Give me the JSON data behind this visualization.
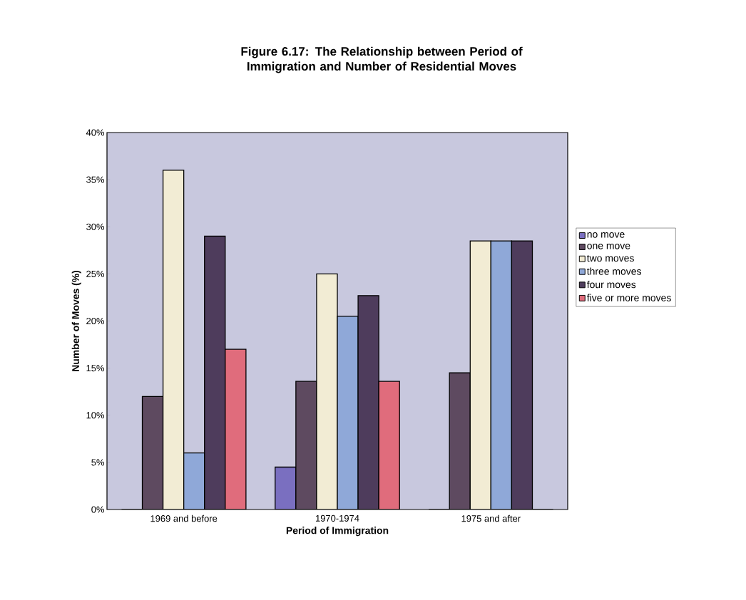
{
  "chart_data": {
    "type": "bar",
    "title": "Figure 6.17: The Relationship between Period of Immigration and Number of Residential Moves",
    "xlabel": "Period of Immigration",
    "ylabel": "Number of Moves (%)",
    "categories": [
      "1969 and before",
      "1970-1974",
      "1975 and after"
    ],
    "series": [
      {
        "name": "no move",
        "color": "#7a6fc0",
        "values": [
          0,
          4.5,
          0
        ]
      },
      {
        "name": "one move",
        "color": "#5e4a60",
        "values": [
          12,
          13.6,
          14.5
        ]
      },
      {
        "name": "two moves",
        "color": "#f2ecd4",
        "values": [
          36,
          25,
          28.5
        ]
      },
      {
        "name": "three moves",
        "color": "#8fa8d8",
        "values": [
          6,
          20.5,
          28.5
        ]
      },
      {
        "name": "four moves",
        "color": "#4e3c5c",
        "values": [
          29,
          22.7,
          28.5
        ]
      },
      {
        "name": "five or more moves",
        "color": "#e06c7c",
        "values": [
          17,
          13.6,
          0
        ]
      }
    ],
    "ylim": [
      0,
      40
    ],
    "yticks": [
      {
        "value": 0,
        "label": "0%"
      },
      {
        "value": 5,
        "label": "5%"
      },
      {
        "value": 10,
        "label": "10%"
      },
      {
        "value": 15,
        "label": "15%"
      },
      {
        "value": 20,
        "label": "20%"
      },
      {
        "value": 25,
        "label": "25%"
      },
      {
        "value": 30,
        "label": "30%"
      },
      {
        "value": 35,
        "label": "35%"
      },
      {
        "value": 40,
        "label": "40%"
      }
    ],
    "legend": "right"
  }
}
